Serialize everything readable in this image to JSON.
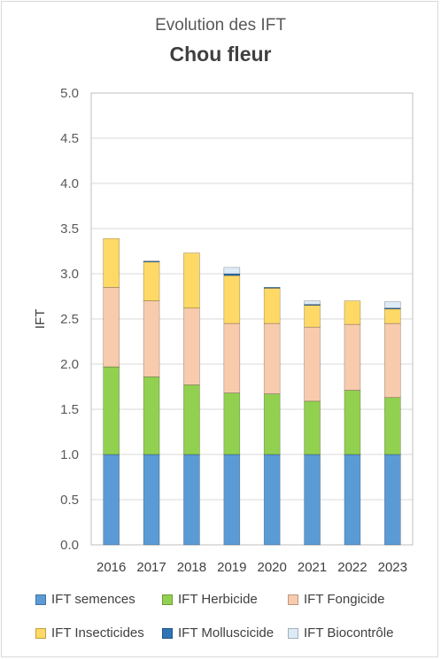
{
  "chart_data": {
    "type": "bar",
    "stacked": true,
    "title": "Evolution des IFT",
    "subtitle": "Chou fleur",
    "xlabel": "",
    "ylabel": "IFT",
    "ylim": [
      0,
      5
    ],
    "yticks": [
      "0.0",
      "0.5",
      "1.0",
      "1.5",
      "2.0",
      "2.5",
      "3.0",
      "3.5",
      "4.0",
      "4.5",
      "5.0"
    ],
    "grid": true,
    "legend_position": "bottom",
    "categories": [
      "2016",
      "2017",
      "2018",
      "2019",
      "2020",
      "2021",
      "2022",
      "2023"
    ],
    "series": [
      {
        "name": "IFT semences",
        "color": "#5b9bd5",
        "values": [
          1.0,
          1.0,
          1.0,
          1.0,
          1.0,
          1.0,
          1.0,
          1.0
        ]
      },
      {
        "name": "IFT Herbicide",
        "color": "#92d050",
        "values": [
          0.97,
          0.86,
          0.77,
          0.68,
          0.67,
          0.59,
          0.71,
          0.63
        ]
      },
      {
        "name": "IFT Fongicide",
        "color": "#f8cbad",
        "values": [
          0.88,
          0.84,
          0.85,
          0.77,
          0.78,
          0.82,
          0.73,
          0.82
        ]
      },
      {
        "name": "IFT Insecticides",
        "color": "#ffd966",
        "values": [
          0.54,
          0.43,
          0.61,
          0.53,
          0.39,
          0.24,
          0.26,
          0.16
        ]
      },
      {
        "name": "IFT Molluscicide",
        "color": "#2e75b6",
        "values": [
          0.0,
          0.01,
          0.0,
          0.02,
          0.01,
          0.01,
          0.0,
          0.01
        ]
      },
      {
        "name": "IFT Biocontrôle",
        "color": "#ddebf7",
        "values": [
          0.0,
          0.0,
          0.0,
          0.07,
          0.0,
          0.04,
          0.0,
          0.07
        ]
      }
    ]
  }
}
